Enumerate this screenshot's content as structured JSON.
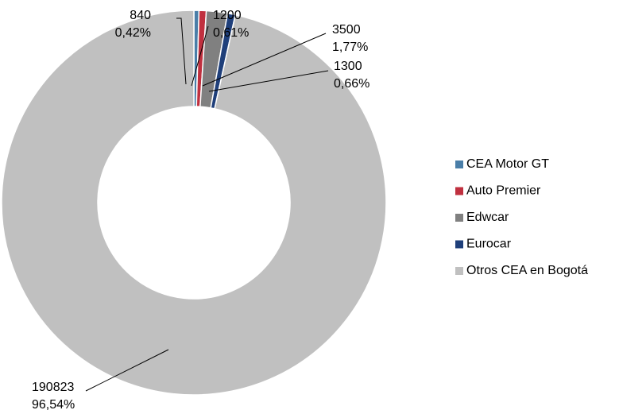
{
  "chart_data": {
    "type": "donut",
    "categories": [
      "CEA Motor GT",
      "Auto Premier",
      "Edwcar",
      "Eurocar",
      "Otros CEA en Bogotá"
    ],
    "values": [
      840,
      1200,
      3500,
      1300,
      190823
    ],
    "percent_labels": [
      "0,42%",
      "0,61%",
      "1,77%",
      "0,66%",
      "96,54%"
    ],
    "colors": [
      "#4a7ea8",
      "#c0303f",
      "#808080",
      "#1f3f7a",
      "#c0c0c0"
    ],
    "legend": "right"
  }
}
